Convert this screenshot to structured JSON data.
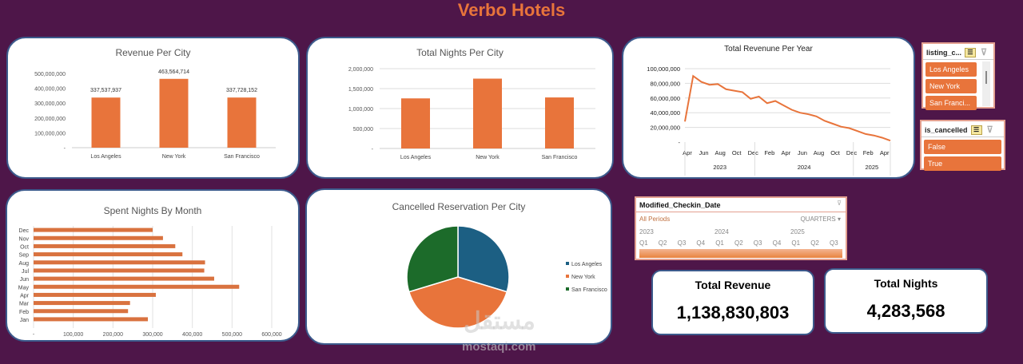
{
  "header": {
    "title": "Verbo Hotels"
  },
  "colors": {
    "background": "#4e1649",
    "accent": "#e8743b",
    "la": "#1c5f83",
    "ny": "#e8743b",
    "sf": "#1c6b2a"
  },
  "chart_data": [
    {
      "id": "revenue_city",
      "type": "bar",
      "title": "Revenue Per City",
      "categories": [
        "Los Angeles",
        "New York",
        "San Francisco"
      ],
      "values": [
        337537937,
        463564714,
        337728152
      ],
      "data_labels": [
        "337,537,937",
        "463,564,714",
        "337,728,152"
      ],
      "ylim": [
        0,
        500000000
      ],
      "yticks": [
        "-",
        "100,000,000",
        "200,000,000",
        "300,000,000",
        "400,000,000",
        "500,000,000"
      ],
      "grid": false
    },
    {
      "id": "nights_city",
      "type": "bar",
      "title": "Total Nights Per City",
      "categories": [
        "Los Angeles",
        "New York",
        "San Francisco"
      ],
      "values": [
        1255000,
        1750000,
        1278568
      ],
      "ylim": [
        0,
        2000000
      ],
      "yticks": [
        "-",
        "500,000",
        "1,000,000",
        "1,500,000",
        "2,000,000"
      ],
      "grid": true
    },
    {
      "id": "revenue_year",
      "type": "line",
      "title": "Total Revenune Per Year",
      "x_months": [
        "Apr",
        "",
        "Jun",
        "",
        "Aug",
        "",
        "Oct",
        "",
        "Dec",
        "",
        "Feb",
        "",
        "Apr",
        "",
        "Jun",
        "",
        "Aug",
        "",
        "Oct",
        "",
        "Dec",
        "",
        "Feb",
        "",
        "Apr",
        ""
      ],
      "years": [
        {
          "label": "2023",
          "months": 9
        },
        {
          "label": "2024",
          "months": 12
        },
        {
          "label": "2025",
          "months": 5
        }
      ],
      "values": [
        28000000,
        90000000,
        82000000,
        78000000,
        79000000,
        72000000,
        70000000,
        68000000,
        59000000,
        62000000,
        53000000,
        56000000,
        50000000,
        44000000,
        40000000,
        38000000,
        35000000,
        29000000,
        25000000,
        21000000,
        19000000,
        15000000,
        11000000,
        9000000,
        6000000,
        2000000
      ],
      "ylim": [
        0,
        100000000
      ],
      "yticks": [
        "-",
        "20,000,000",
        "40,000,000",
        "60,000,000",
        "80,000,000",
        "100,000,000"
      ],
      "grid": true
    },
    {
      "id": "nights_month",
      "type": "bar",
      "orientation": "horizontal",
      "title": "Spent Nights By Month",
      "categories": [
        "Jan",
        "Feb",
        "Mar",
        "Apr",
        "May",
        "Jun",
        "Jul",
        "Aug",
        "Sep",
        "Oct",
        "Nov",
        "Dec"
      ],
      "values": [
        288000,
        238000,
        243000,
        308000,
        518000,
        455000,
        430000,
        432000,
        375000,
        357000,
        326000,
        300000
      ],
      "xlim": [
        0,
        600000
      ],
      "xticks": [
        "-",
        "100,000",
        "200,000",
        "300,000",
        "400,000",
        "500,000",
        "600,000"
      ],
      "grid": true
    },
    {
      "id": "cancelled_city",
      "type": "pie",
      "title": "Cancelled Reservation Per City",
      "categories": [
        "Los Angeles",
        "New York",
        "San Francisco"
      ],
      "values": [
        29.7,
        40.6,
        29.7
      ],
      "legend": "right"
    }
  ],
  "slicers": {
    "listing": {
      "title": "listing_c...",
      "items": [
        "Los Angeles",
        "New York",
        "San Franci..."
      ]
    },
    "cancelled": {
      "title": "is_cancelled",
      "items": [
        "False",
        "True"
      ]
    }
  },
  "timeline": {
    "title": "Modified_Checkin_Date",
    "all": "All Periods",
    "level": "QUARTERS",
    "years": [
      "2023",
      "2024",
      "2025"
    ],
    "quarters": [
      "Q1",
      "Q2",
      "Q3",
      "Q4",
      "Q1",
      "Q2",
      "Q3",
      "Q4",
      "Q1",
      "Q2",
      "Q3"
    ]
  },
  "kpis": [
    {
      "label": "Total Revenue",
      "value": "1,138,830,803"
    },
    {
      "label": "Total Nights",
      "value": "4,283,568"
    }
  ],
  "watermark": {
    "arabic": "مستقل",
    "latin": "mostaqi.com"
  }
}
